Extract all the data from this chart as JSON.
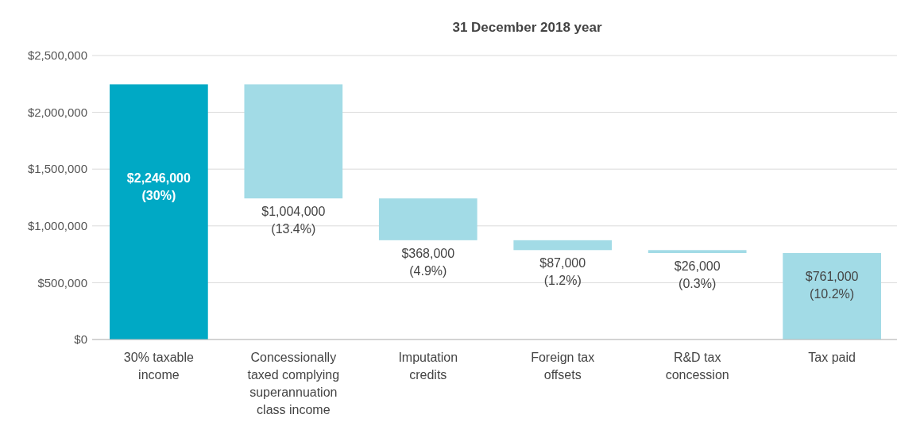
{
  "chart_data": {
    "type": "bar",
    "title": "31 December 2018 year",
    "categories": [
      "30% taxable income",
      "Concessionally taxed complying superannuation class income",
      "Imputation credits",
      "Foreign tax offsets",
      "R&D tax concession",
      "Tax paid"
    ],
    "values": [
      2246000,
      1004000,
      368000,
      87000,
      26000,
      761000
    ],
    "base": [
      0,
      1242000,
      874000,
      787000,
      761000,
      0
    ],
    "colors": [
      "#00a9c5",
      "#a2dbe6",
      "#a2dbe6",
      "#a2dbe6",
      "#a2dbe6",
      "#a2dbe6"
    ],
    "value_labels": [
      "$2,246,000\n(30%)",
      "$1,004,000\n(13.4%)",
      "$368,000\n(4.9%)",
      "$87,000\n(1.2%)",
      "$26,000\n(0.3%)",
      "$761,000\n(10.2%)"
    ],
    "ylim": [
      0,
      2500000
    ],
    "yticks": [
      {
        "value": 0,
        "label": "$0"
      },
      {
        "value": 500000,
        "label": "$500,000"
      },
      {
        "value": 1000000,
        "label": "$1,000,000"
      },
      {
        "value": 1500000,
        "label": "$1,500,000"
      },
      {
        "value": 2000000,
        "label": "$2,000,000"
      },
      {
        "value": 2500000,
        "label": "$2,500,000"
      }
    ],
    "grid": "y"
  }
}
